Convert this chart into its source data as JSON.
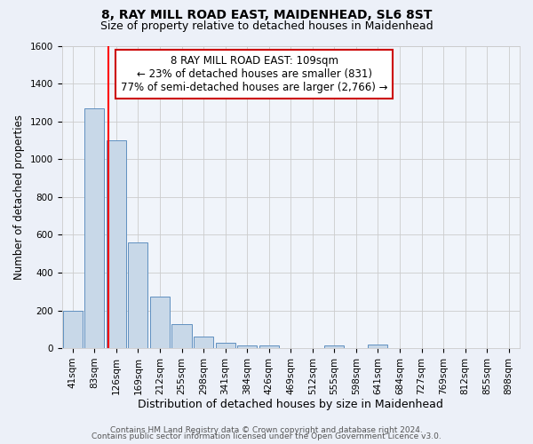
{
  "title": "8, RAY MILL ROAD EAST, MAIDENHEAD, SL6 8ST",
  "subtitle": "Size of property relative to detached houses in Maidenhead",
  "xlabel": "Distribution of detached houses by size in Maidenhead",
  "ylabel": "Number of detached properties",
  "bin_labels": [
    "41sqm",
    "83sqm",
    "126sqm",
    "169sqm",
    "212sqm",
    "255sqm",
    "298sqm",
    "341sqm",
    "384sqm",
    "426sqm",
    "469sqm",
    "512sqm",
    "555sqm",
    "598sqm",
    "641sqm",
    "684sqm",
    "727sqm",
    "769sqm",
    "812sqm",
    "855sqm",
    "898sqm"
  ],
  "bar_heights": [
    200,
    1270,
    1100,
    560,
    275,
    125,
    60,
    30,
    15,
    15,
    0,
    0,
    15,
    0,
    20,
    0,
    0,
    0,
    0,
    0,
    0
  ],
  "bar_color": "#c8d8e8",
  "bar_edge_color": "#6090c0",
  "red_line_x": 1.64,
  "annotation_text": "8 RAY MILL ROAD EAST: 109sqm\n← 23% of detached houses are smaller (831)\n77% of semi-detached houses are larger (2,766) →",
  "annotation_box_color": "#ffffff",
  "annotation_box_edge": "#cc0000",
  "ylim": [
    0,
    1600
  ],
  "yticks": [
    0,
    200,
    400,
    600,
    800,
    1000,
    1200,
    1400,
    1600
  ],
  "bg_color": "#ecf0f8",
  "plot_bg_color": "#f0f4fa",
  "grid_color": "#cccccc",
  "footer_line1": "Contains HM Land Registry data © Crown copyright and database right 2024.",
  "footer_line2": "Contains public sector information licensed under the Open Government Licence v3.0.",
  "title_fontsize": 10,
  "subtitle_fontsize": 9,
  "xlabel_fontsize": 9,
  "ylabel_fontsize": 8.5,
  "tick_fontsize": 7.5,
  "annotation_fontsize": 8.5,
  "footer_fontsize": 6.5
}
